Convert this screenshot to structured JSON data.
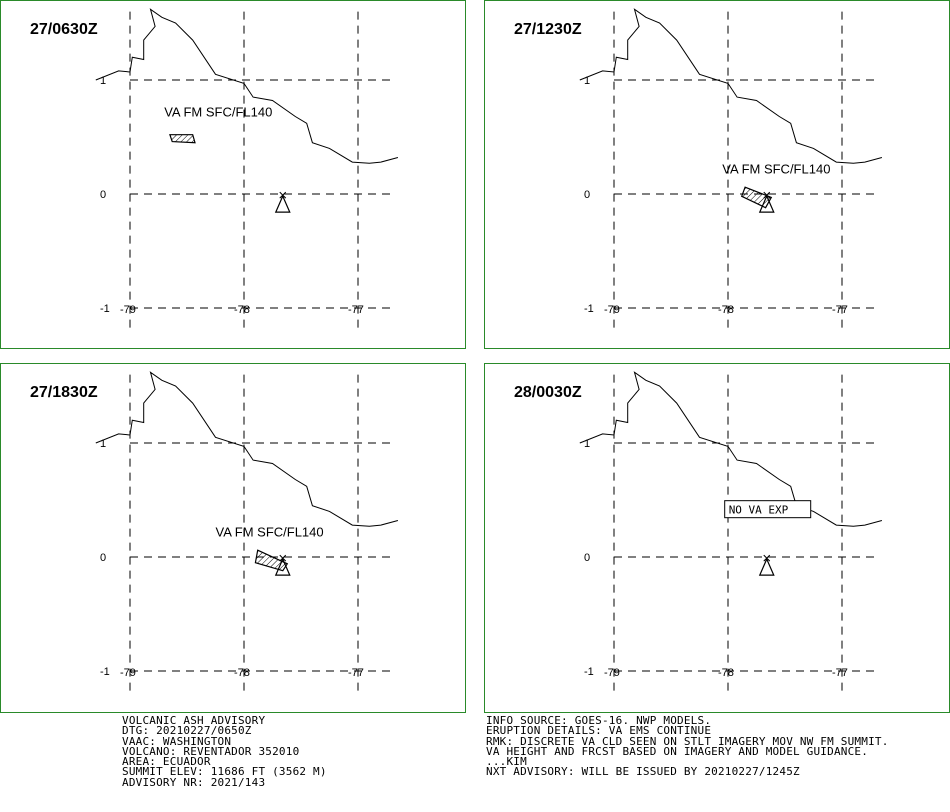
{
  "chart_data": [
    {
      "type": "map",
      "title": "27/0630Z",
      "x_ticks": [
        -79,
        -78,
        -77
      ],
      "y_ticks": [
        1,
        0,
        -1
      ],
      "x_tick_labels": [
        "-79",
        "-78",
        "-77"
      ],
      "y_tick_labels": [
        "1",
        "0",
        "-1"
      ],
      "xlim": [
        -79.3,
        -76.6
      ],
      "ylim": [
        -1.2,
        1.6
      ],
      "volcano": {
        "lon": -77.66,
        "lat": -0.08
      },
      "ash_label": "VA FM SFC/FL140",
      "ash_polygon": [
        [
          -78.65,
          0.52
        ],
        [
          -78.45,
          0.52
        ],
        [
          -78.43,
          0.45
        ],
        [
          -78.63,
          0.46
        ]
      ],
      "ash_label_pos": {
        "lon": -78.7,
        "lat": 0.68
      }
    },
    {
      "type": "map",
      "title": "27/1230Z",
      "x_ticks": [
        -79,
        -78,
        -77
      ],
      "y_ticks": [
        1,
        0,
        -1
      ],
      "x_tick_labels": [
        "-79",
        "-78",
        "-77"
      ],
      "y_tick_labels": [
        "1",
        "0",
        "-1"
      ],
      "xlim": [
        -79.3,
        -76.6
      ],
      "ylim": [
        -1.2,
        1.6
      ],
      "volcano": {
        "lon": -77.66,
        "lat": -0.08
      },
      "ash_label": "VA FM SFC/FL140",
      "ash_polygon": [
        [
          -77.85,
          0.06
        ],
        [
          -77.62,
          -0.03
        ],
        [
          -77.67,
          -0.12
        ],
        [
          -77.88,
          -0.02
        ]
      ],
      "ash_label_pos": {
        "lon": -78.05,
        "lat": 0.18
      }
    },
    {
      "type": "map",
      "title": "27/1830Z",
      "x_ticks": [
        -79,
        -78,
        -77
      ],
      "y_ticks": [
        1,
        0,
        -1
      ],
      "x_tick_labels": [
        "-79",
        "-78",
        "-77"
      ],
      "y_tick_labels": [
        "1",
        "0",
        "-1"
      ],
      "xlim": [
        -79.3,
        -76.6
      ],
      "ylim": [
        -1.2,
        1.6
      ],
      "volcano": {
        "lon": -77.66,
        "lat": -0.08
      },
      "ash_label": "VA FM SFC/FL140",
      "ash_polygon": [
        [
          -77.88,
          0.06
        ],
        [
          -77.62,
          -0.06
        ],
        [
          -77.66,
          -0.12
        ],
        [
          -77.9,
          -0.05
        ]
      ],
      "ash_label_pos": {
        "lon": -78.25,
        "lat": 0.18
      }
    },
    {
      "type": "map",
      "title": "28/0030Z",
      "x_ticks": [
        -79,
        -78,
        -77
      ],
      "y_ticks": [
        1,
        0,
        -1
      ],
      "x_tick_labels": [
        "-79",
        "-78",
        "-77"
      ],
      "y_tick_labels": [
        "1",
        "0",
        "-1"
      ],
      "xlim": [
        -79.3,
        -76.6
      ],
      "ylim": [
        -1.2,
        1.6
      ],
      "volcano": {
        "lon": -77.66,
        "lat": -0.08
      },
      "ash_label": "NO VA EXP",
      "ash_polygon": [],
      "ash_label_pos": {
        "lon": -77.95,
        "lat": 0.38
      }
    }
  ],
  "coastline": [
    [
      -79.3,
      1.0
    ],
    [
      -79.1,
      1.08
    ],
    [
      -79.0,
      1.07
    ],
    [
      -78.98,
      1.2
    ],
    [
      -78.88,
      1.18
    ],
    [
      -78.88,
      1.35
    ],
    [
      -78.78,
      1.47
    ],
    [
      -78.82,
      1.62
    ],
    [
      -78.72,
      1.55
    ],
    [
      -78.6,
      1.5
    ],
    [
      -78.45,
      1.35
    ],
    [
      -78.25,
      1.05
    ],
    [
      -78.0,
      0.97
    ],
    [
      -77.92,
      0.85
    ],
    [
      -77.75,
      0.82
    ],
    [
      -77.55,
      0.68
    ],
    [
      -77.45,
      0.62
    ],
    [
      -77.4,
      0.45
    ],
    [
      -77.25,
      0.4
    ],
    [
      -77.05,
      0.28
    ],
    [
      -76.9,
      0.27
    ],
    [
      -76.8,
      0.28
    ],
    [
      -76.65,
      0.32
    ]
  ],
  "footer_left": [
    "VOLCANIC ASH ADVISORY",
    "DTG: 20210227/0650Z",
    "VAAC: WASHINGTON",
    "VOLCANO: REVENTADOR 352010",
    "AREA: ECUADOR",
    "SUMMIT ELEV: 11686 FT (3562 M)",
    "ADVISORY NR: 2021/143"
  ],
  "footer_right": [
    "INFO SOURCE: GOES-16. NWP MODELS.",
    "ERUPTION DETAILS: VA EMS CONTINUE",
    "RMK: DISCRETE VA CLD SEEN ON STLT IMAGERY MOV NW FM SUMMIT.",
    "VA HEIGHT AND FRCST BASED ON IMAGERY AND MODEL GUIDANCE.",
    "...KIM",
    "NXT ADVISORY: WILL BE ISSUED BY 20210227/1245Z"
  ],
  "colors": {
    "frame": "#2a8a2a",
    "lines": "#000000",
    "background": "#ffffff"
  }
}
